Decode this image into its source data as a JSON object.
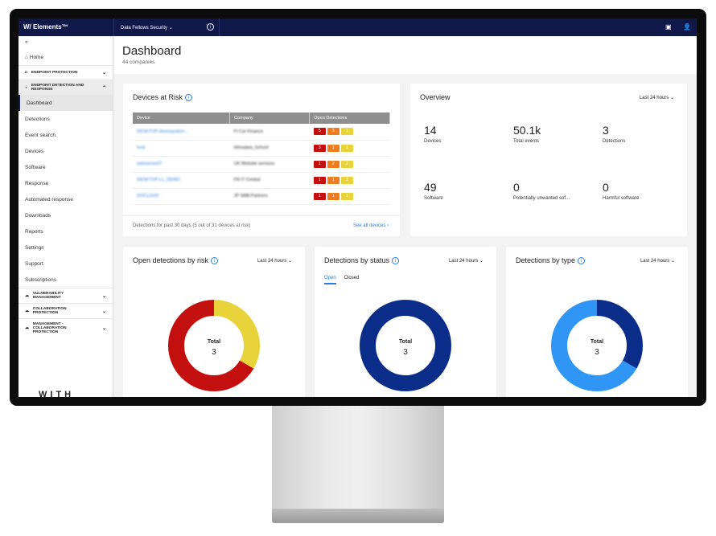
{
  "app": {
    "logo": "W/ Elements™",
    "org": "Data Fellows Security",
    "brand": "WITH secure"
  },
  "sidebar": {
    "collapse": "«",
    "home": "Home",
    "sections": [
      "ENDPOINT PROTECTION",
      "ENDPOINT DETECTION AND RESPONSE",
      "VULNERABILITY MANAGEMENT",
      "COLLABORATION PROTECTION",
      "MANAGEMENT - COLLABORATION PROTECTION"
    ],
    "items": [
      "Dashboard",
      "Detections",
      "Event search",
      "Devices",
      "Software",
      "Response",
      "Automated response",
      "Downloads",
      "Reports",
      "Settings",
      "Support",
      "Subscriptions"
    ]
  },
  "header": {
    "title": "Dashboard",
    "subtitle": "44 companies"
  },
  "devices": {
    "title": "Devices at Risk",
    "columns": [
      "Device",
      "Company",
      "Open Detections"
    ],
    "rows": [
      {
        "device": "DESKTOP-demosystem...",
        "company": "FI Car Finance",
        "d": [
          "5",
          "5",
          "1"
        ]
      },
      {
        "device": "host",
        "company": "Hirosawa_School",
        "d": [
          "3",
          "1",
          "1"
        ]
      },
      {
        "device": "webserver07",
        "company": "UK Website services",
        "d": [
          "1",
          "2",
          "2"
        ]
      },
      {
        "device": "DESKTOP-LL_DEMO",
        "company": "FR IT Central",
        "d": [
          "1",
          "1",
          "2"
        ]
      },
      {
        "device": "DOCLOUD",
        "company": "JP SMB Partners",
        "d": [
          "1",
          "1",
          "1"
        ]
      }
    ],
    "footer": "Detections for past 30 days (5 out of 31 devices at risk)",
    "see_all": "See all devices"
  },
  "overview": {
    "title": "Overview",
    "range": "Last 24 hours",
    "stats": [
      {
        "v": "14",
        "l": "Devices"
      },
      {
        "v": "50.1k",
        "l": "Total events"
      },
      {
        "v": "3",
        "l": "Detections"
      },
      {
        "v": "49",
        "l": "Software"
      },
      {
        "v": "0",
        "l": "Potentially unwanted sof..."
      },
      {
        "v": "0",
        "l": "Harmful software"
      }
    ]
  },
  "colors": {
    "high": "#c40f0f",
    "medium": "#ee7d1f",
    "low": "#e8d33a",
    "navy": "#0b2d8a",
    "blue": "#2f96f5"
  },
  "charts": [
    {
      "title": "Open detections by risk",
      "range": "Last 24 hours",
      "total_label": "Total",
      "total": "3",
      "segments": [
        {
          "color": "#e8d33a",
          "value": 1
        },
        {
          "color": "#c40f0f",
          "value": 2
        }
      ]
    },
    {
      "title": "Detections by status",
      "range": "Last 24 hours",
      "tabs": [
        "Open",
        "Closed"
      ],
      "total_label": "Total",
      "total": "3",
      "segments": [
        {
          "color": "#0b2d8a",
          "value": 3
        }
      ]
    },
    {
      "title": "Detections by type",
      "range": "Last 24 hours",
      "total_label": "Total",
      "total": "3",
      "segments": [
        {
          "color": "#0b2d8a",
          "value": 1
        },
        {
          "color": "#2f96f5",
          "value": 2
        }
      ]
    }
  ]
}
